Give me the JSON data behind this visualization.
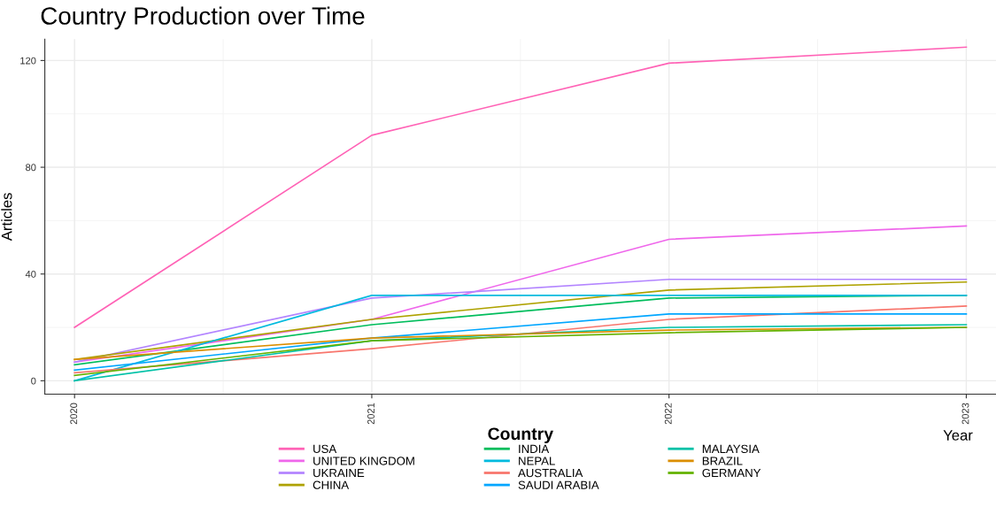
{
  "chart_data": {
    "type": "line",
    "title": "Country Production over Time",
    "xlabel": "Year",
    "ylabel": "Articles",
    "legend_title": "Country",
    "x": [
      2020,
      2021,
      2022,
      2023
    ],
    "series": [
      {
        "name": "USA",
        "color": "#ff63b6",
        "values": [
          20,
          92,
          119,
          125
        ]
      },
      {
        "name": "UNITED KINGDOM",
        "color": "#ef67eb",
        "values": [
          7,
          23,
          53,
          58
        ]
      },
      {
        "name": "UKRAINE",
        "color": "#b385ff",
        "values": [
          7,
          31,
          38,
          38
        ]
      },
      {
        "name": "CHINA",
        "color": "#aea200",
        "values": [
          8,
          23,
          34,
          37
        ]
      },
      {
        "name": "INDIA",
        "color": "#00bd5c",
        "values": [
          6,
          21,
          31,
          32
        ]
      },
      {
        "name": "NEPAL",
        "color": "#00bade",
        "values": [
          0,
          32,
          32,
          32
        ]
      },
      {
        "name": "AUSTRALIA",
        "color": "#f8766d",
        "values": [
          3,
          12,
          23,
          28
        ]
      },
      {
        "name": "SAUDI ARABIA",
        "color": "#00a6ff",
        "values": [
          4,
          16,
          25,
          25
        ]
      },
      {
        "name": "MALAYSIA",
        "color": "#00c1a7",
        "values": [
          0,
          15,
          20,
          21
        ]
      },
      {
        "name": "BRAZIL",
        "color": "#db8e00",
        "values": [
          8,
          16,
          19,
          20
        ]
      },
      {
        "name": "GERMANY",
        "color": "#64b200",
        "values": [
          2,
          15,
          18,
          20
        ]
      }
    ],
    "xlim": [
      2019.9,
      2023.1
    ],
    "xticks": [
      2020,
      2021,
      2022,
      2023
    ],
    "ylim": [
      -5,
      128
    ],
    "yticks": [
      0,
      40,
      80,
      120
    ],
    "grid": true,
    "legend": "bottom",
    "marker": "none",
    "line_style": "solid"
  }
}
